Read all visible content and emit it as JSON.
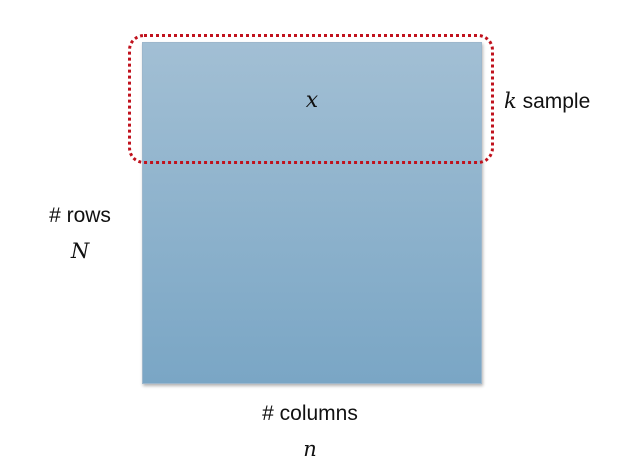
{
  "matrix": {
    "variable": "x",
    "fill_color_top": "#a2bfd4",
    "fill_color_bottom": "#7aa6c5"
  },
  "selection": {
    "variable": "k",
    "label": "sample",
    "border_color": "#c0121d"
  },
  "rows": {
    "label": "# rows",
    "variable": "N"
  },
  "columns": {
    "label": "# columns",
    "variable": "n"
  }
}
